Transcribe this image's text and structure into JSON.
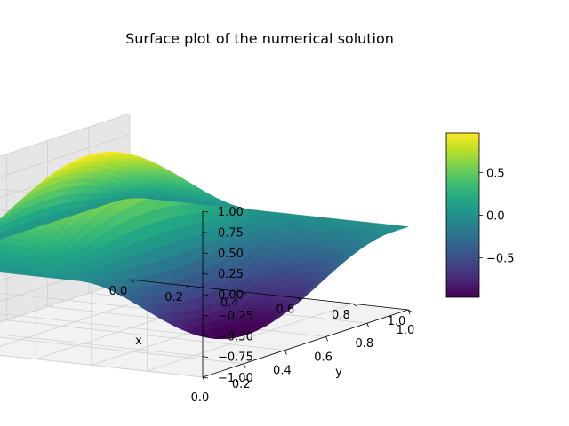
{
  "chart_data": {
    "type": "surface3d",
    "title": "Surface plot of the numerical solution",
    "xlabel": "x",
    "ylabel": "y",
    "zlabel": "",
    "x_ticks": [
      "0.0",
      "0.2",
      "0.4",
      "0.6",
      "0.8",
      "1.0"
    ],
    "y_ticks": [
      "0.0",
      "0.2",
      "0.4",
      "0.6",
      "0.8",
      "1.0"
    ],
    "z_ticks": [
      "−1.00",
      "−0.75",
      "−0.50",
      "−0.25",
      "0.00",
      "0.25",
      "0.50",
      "0.75",
      "1.00"
    ],
    "xlim": [
      0,
      1
    ],
    "ylim": [
      0,
      1
    ],
    "zlim": [
      -1,
      1
    ],
    "surface_function": "u(x,y) = sin(2*pi*x) * sin(pi*y)",
    "surface_range": [
      -0.96,
      0.96
    ],
    "colormap": "viridis",
    "colorbar": {
      "ticks": [
        "−0.5",
        "0.0",
        "0.5"
      ],
      "range": [
        -0.96,
        0.96
      ]
    },
    "grid": true
  }
}
